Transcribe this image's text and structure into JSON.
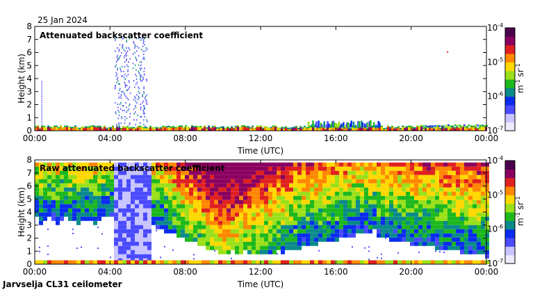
{
  "header": {
    "date": "25 Jan 2024"
  },
  "footer": {
    "instrument": "Jarvselja CL31 ceilometer"
  },
  "chart_data": [
    {
      "type": "heatmap",
      "title": "Attenuated backscatter coefficient",
      "xlabel": "Time (UTC)",
      "ylabel": "Height (km)",
      "x_ticks": [
        "00:00",
        "04:00",
        "08:00",
        "12:00",
        "16:00",
        "20:00",
        "00:00"
      ],
      "y_ticks": [
        "0",
        "1",
        "2",
        "3",
        "4",
        "5",
        "6",
        "7",
        "8"
      ],
      "xlim_hours": [
        0,
        24
      ],
      "ylim_km": [
        0,
        8
      ],
      "colorbar": {
        "label": "m-1 sr-1",
        "scale": "log",
        "range": [
          1e-07,
          0.0001
        ],
        "ticks": [
          "10-7",
          "10-6",
          "10-5",
          "10-4"
        ]
      },
      "features": [
        {
          "kind": "boundary-layer band",
          "from_h": 0,
          "to_h": 24,
          "height_km": [
            0,
            0.3
          ]
        },
        {
          "kind": "precipitation streaks",
          "from_h": 4.2,
          "to_h": 6.0,
          "height_km": [
            0.3,
            7.2
          ]
        },
        {
          "kind": "cloud patches",
          "from_h": 15.0,
          "to_h": 17.5,
          "height_km": [
            0.3,
            0.8
          ]
        }
      ]
    },
    {
      "type": "heatmap",
      "title": "Raw attenuated backscatter coefficient",
      "xlabel": "Time (UTC)",
      "ylabel": "Height (km)",
      "x_ticks": [
        "00:00",
        "04:00",
        "08:00",
        "12:00",
        "16:00",
        "20:00",
        "00:00"
      ],
      "y_ticks": [
        "0",
        "1",
        "2",
        "3",
        "4",
        "5",
        "6",
        "7",
        "8"
      ],
      "xlim_hours": [
        0,
        24
      ],
      "ylim_km": [
        0,
        8
      ],
      "colorbar": {
        "label": "m-1 sr-1",
        "scale": "log",
        "range": [
          1e-07,
          0.0001
        ],
        "ticks": [
          "10-7",
          "10-6",
          "10-5",
          "10-4"
        ]
      },
      "features": [
        {
          "kind": "noise field",
          "from_h": 0,
          "to_h": 24,
          "height_km": [
            0.5,
            7.8
          ]
        },
        {
          "kind": "saturated block",
          "from_h": 4.0,
          "to_h": 6.0,
          "height_km": [
            0.2,
            7.8
          ]
        },
        {
          "kind": "boundary-layer band",
          "from_h": 0,
          "to_h": 24,
          "height_km": [
            0,
            0.3
          ]
        }
      ]
    }
  ],
  "colors": {
    "scale": [
      "#eeeaff",
      "#c8c4ff",
      "#4a4aff",
      "#0a2cf0",
      "#0a8a8a",
      "#1db81d",
      "#9be01a",
      "#ffd800",
      "#ff8800",
      "#e02020",
      "#8a0060",
      "#4a004a"
    ]
  }
}
